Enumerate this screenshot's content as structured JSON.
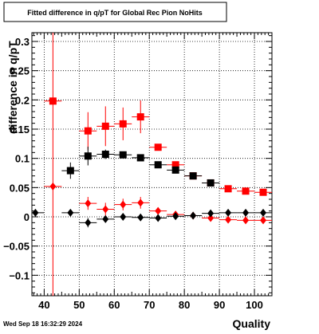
{
  "chart_data": {
    "type": "scatter",
    "title": "Fitted difference in q/pT for Global Rec Pion NoHits",
    "xlabel": "Quality",
    "ylabel": "difference in q/pT",
    "timestamp": "Wed Sep 18 16:32:29 2024",
    "xlim": [
      36.5,
      105
    ],
    "ylim": [
      -0.135,
      0.315
    ],
    "grid": true,
    "legend": "none",
    "x_ticks": [
      40,
      50,
      60,
      70,
      80,
      90,
      100
    ],
    "y_ticks": [
      -0.1,
      -0.05,
      0,
      0.05,
      0.1,
      0.15,
      0.2,
      0.25,
      0.3
    ],
    "x_tick_labels": [
      "40",
      "50",
      "60",
      "70",
      "80",
      "90",
      "100"
    ],
    "y_tick_labels": [
      "−0.1",
      "−0.05",
      "0",
      "0.05",
      "0.1",
      "0.15",
      "0.2",
      "0.25",
      "0.3"
    ],
    "series": [
      {
        "marker": "square",
        "color": "#ff0000",
        "points": [
          {
            "x": 42.5,
            "y": 0.198,
            "xerr": 2.5,
            "yerr": 0.0
          },
          {
            "x": 52.5,
            "y": 0.147,
            "xerr": 2.5,
            "yerr": 0.032
          },
          {
            "x": 57.5,
            "y": 0.155,
            "xerr": 2.5,
            "yerr": 0.034
          },
          {
            "x": 62.5,
            "y": 0.159,
            "xerr": 2.5,
            "yerr": 0.028
          },
          {
            "x": 67.5,
            "y": 0.171,
            "xerr": 2.5,
            "yerr": 0.028
          },
          {
            "x": 72.5,
            "y": 0.119,
            "xerr": 2.5,
            "yerr": 0.002
          },
          {
            "x": 77.5,
            "y": 0.089,
            "xerr": 2.5,
            "yerr": 0.002
          },
          {
            "x": 82.5,
            "y": 0.07,
            "xerr": 2.5,
            "yerr": 0.002
          },
          {
            "x": 87.5,
            "y": 0.058,
            "xerr": 2.5,
            "yerr": 0.002
          },
          {
            "x": 92.5,
            "y": 0.048,
            "xerr": 2.5,
            "yerr": 0.002
          },
          {
            "x": 97.5,
            "y": 0.044,
            "xerr": 2.5,
            "yerr": 0.002
          },
          {
            "x": 102.5,
            "y": 0.042,
            "xerr": 2.5,
            "yerr": 0.002
          }
        ]
      },
      {
        "marker": "diamond",
        "color": "#ff0000",
        "points": [
          {
            "x": 42.5,
            "y": 0.052,
            "xerr": 2.5,
            "yerr": 0.0
          },
          {
            "x": 52.5,
            "y": 0.023,
            "xerr": 2.5,
            "yerr": 0.011
          },
          {
            "x": 57.5,
            "y": 0.013,
            "xerr": 2.5,
            "yerr": 0.011
          },
          {
            "x": 62.5,
            "y": 0.021,
            "xerr": 2.5,
            "yerr": 0.01
          },
          {
            "x": 67.5,
            "y": 0.024,
            "xerr": 2.5,
            "yerr": 0.01
          },
          {
            "x": 72.5,
            "y": 0.01,
            "xerr": 2.5,
            "yerr": 0.002
          },
          {
            "x": 77.5,
            "y": 0.004,
            "xerr": 2.5,
            "yerr": 0.002
          },
          {
            "x": 82.5,
            "y": 0.002,
            "xerr": 2.5,
            "yerr": 0.002
          },
          {
            "x": 87.5,
            "y": -0.002,
            "xerr": 2.5,
            "yerr": 0.002
          },
          {
            "x": 92.5,
            "y": -0.005,
            "xerr": 2.5,
            "yerr": 0.002
          },
          {
            "x": 97.5,
            "y": -0.006,
            "xerr": 2.5,
            "yerr": 0.002
          },
          {
            "x": 102.5,
            "y": -0.006,
            "xerr": 2.5,
            "yerr": 0.002
          }
        ]
      },
      {
        "marker": "square",
        "color": "#000000",
        "points": [
          {
            "x": 47.5,
            "y": 0.079,
            "xerr": 2.5,
            "yerr": 0.014
          },
          {
            "x": 52.5,
            "y": 0.104,
            "xerr": 2.5,
            "yerr": 0.016
          },
          {
            "x": 57.5,
            "y": 0.107,
            "xerr": 2.5,
            "yerr": 0.008
          },
          {
            "x": 62.5,
            "y": 0.106,
            "xerr": 2.5,
            "yerr": 0.005
          },
          {
            "x": 67.5,
            "y": 0.101,
            "xerr": 2.5,
            "yerr": 0.004
          },
          {
            "x": 72.5,
            "y": 0.089,
            "xerr": 2.5,
            "yerr": 0.002
          },
          {
            "x": 77.5,
            "y": 0.08,
            "xerr": 2.5,
            "yerr": 0.002
          },
          {
            "x": 82.5,
            "y": 0.07,
            "xerr": 2.5,
            "yerr": 0.002
          },
          {
            "x": 87.5,
            "y": 0.058,
            "xerr": 2.5,
            "yerr": 0.002
          }
        ]
      },
      {
        "marker": "diamond",
        "color": "#000000",
        "points": [
          {
            "x": 37.5,
            "y": 0.007,
            "xerr": 2.5,
            "yerr": 0.0
          },
          {
            "x": 47.5,
            "y": 0.007,
            "xerr": 2.5,
            "yerr": 0.004
          },
          {
            "x": 52.5,
            "y": -0.01,
            "xerr": 2.5,
            "yerr": 0.008
          },
          {
            "x": 57.5,
            "y": -0.004,
            "xerr": 2.5,
            "yerr": 0.004
          },
          {
            "x": 62.5,
            "y": 0.0,
            "xerr": 2.5,
            "yerr": 0.002
          },
          {
            "x": 67.5,
            "y": -0.001,
            "xerr": 2.5,
            "yerr": 0.002
          },
          {
            "x": 72.5,
            "y": -0.002,
            "xerr": 2.5,
            "yerr": 0.002
          },
          {
            "x": 77.5,
            "y": 0.001,
            "xerr": 2.5,
            "yerr": 0.002
          },
          {
            "x": 82.5,
            "y": 0.002,
            "xerr": 2.5,
            "yerr": 0.002
          },
          {
            "x": 87.5,
            "y": 0.006,
            "xerr": 2.5,
            "yerr": 0.002
          },
          {
            "x": 92.5,
            "y": 0.007,
            "xerr": 2.5,
            "yerr": 0.002
          },
          {
            "x": 97.5,
            "y": 0.007,
            "xerr": 2.5,
            "yerr": 0.002
          },
          {
            "x": 102.5,
            "y": 0.007,
            "xerr": 2.5,
            "yerr": 0.002
          }
        ]
      }
    ],
    "annotations": [
      {
        "x": 42.5,
        "y_from": -0.135,
        "y_to": 0.315,
        "color": "#ff0000"
      }
    ]
  }
}
